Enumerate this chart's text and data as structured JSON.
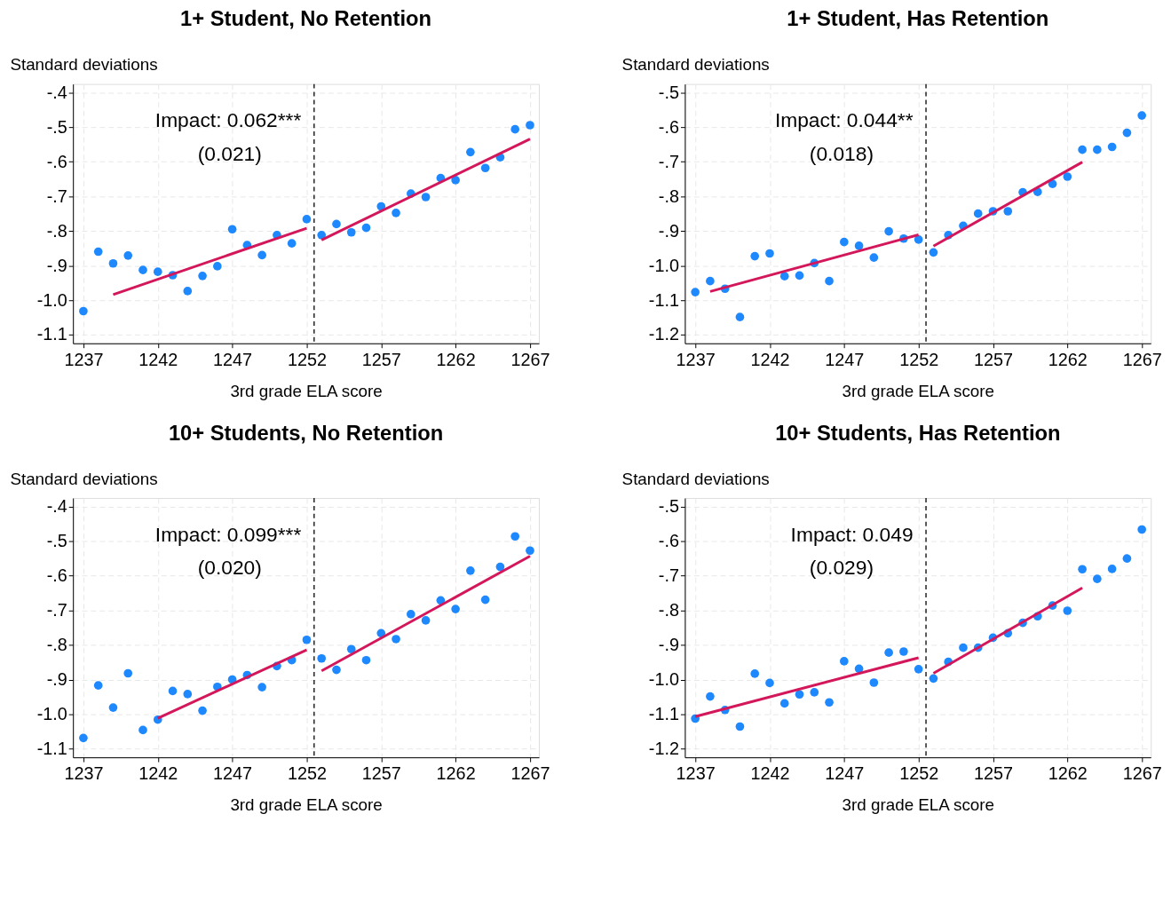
{
  "chart_data": [
    {
      "type": "scatter",
      "title": "1+ Student, No Retention",
      "ylabel": "Standard deviations",
      "xlabel": "3rd grade ELA score",
      "annotations": [
        "Impact: 0.062***",
        "(0.021)"
      ],
      "xlim": [
        1236.3,
        1267.6
      ],
      "xticks": [
        1237,
        1242,
        1247,
        1252,
        1257,
        1262,
        1267
      ],
      "ylim": [
        -1.125,
        -0.375
      ],
      "yticks": [
        {
          "value": -0.4,
          "label": "-.4"
        },
        {
          "value": -0.5,
          "label": "-.5"
        },
        {
          "value": -0.6,
          "label": "-.6"
        },
        {
          "value": -0.7,
          "label": "-.7"
        },
        {
          "value": -0.8,
          "label": "-.8"
        },
        {
          "value": -0.9,
          "label": "-.9"
        },
        {
          "value": -1.0,
          "label": "-1.0"
        },
        {
          "value": -1.1,
          "label": "-1.1"
        }
      ],
      "grid": true,
      "ref_lines": [
        {
          "axis": "x",
          "value": 1252.5,
          "line_style": "dashed",
          "color": "#000000"
        }
      ],
      "series": [
        {
          "marker": "circle",
          "color": "#1e88ff",
          "x": [
            1237,
            1238,
            1239,
            1240,
            1241,
            1242,
            1243,
            1244,
            1245,
            1246,
            1247,
            1248,
            1249,
            1250,
            1251,
            1252,
            1253,
            1254,
            1255,
            1256,
            1257,
            1258,
            1259,
            1260,
            1261,
            1262,
            1263,
            1264,
            1265,
            1266,
            1267
          ],
          "values": [
            -1.032,
            -0.86,
            -0.894,
            -0.871,
            -0.913,
            -0.918,
            -0.928,
            -0.974,
            -0.93,
            -0.902,
            -0.795,
            -0.841,
            -0.87,
            -0.812,
            -0.836,
            -0.766,
            -0.812,
            -0.78,
            -0.804,
            -0.791,
            -0.729,
            -0.748,
            -0.692,
            -0.702,
            -0.647,
            -0.653,
            -0.572,
            -0.618,
            -0.587,
            -0.506,
            -0.494
          ]
        },
        {
          "type": "line",
          "marker": "none",
          "color": "#d3175a",
          "x": [
            1239,
            1252
          ],
          "values": [
            -0.984,
            -0.792
          ]
        },
        {
          "type": "line",
          "marker": "none",
          "color": "#d3175a",
          "x": [
            1253,
            1267
          ],
          "values": [
            -0.826,
            -0.534
          ]
        }
      ]
    },
    {
      "type": "scatter",
      "title": "1+ Student, Has Retention",
      "ylabel": "Standard deviations",
      "xlabel": "3rd grade ELA score",
      "annotations": [
        "Impact: 0.044**",
        "(0.018)"
      ],
      "xlim": [
        1236.3,
        1267.6
      ],
      "xticks": [
        1237,
        1242,
        1247,
        1252,
        1257,
        1262,
        1267
      ],
      "ylim": [
        -1.225,
        -0.475
      ],
      "yticks": [
        {
          "value": -0.5,
          "label": "-.5"
        },
        {
          "value": -0.6,
          "label": "-.6"
        },
        {
          "value": -0.7,
          "label": "-.7"
        },
        {
          "value": -0.8,
          "label": "-.8"
        },
        {
          "value": -0.9,
          "label": "-.9"
        },
        {
          "value": -1.0,
          "label": "-1.0"
        },
        {
          "value": -1.1,
          "label": "-1.1"
        },
        {
          "value": -1.2,
          "label": "-1.2"
        }
      ],
      "grid": true,
      "ref_lines": [
        {
          "axis": "x",
          "value": 1252.5,
          "line_style": "dashed",
          "color": "#000000"
        }
      ],
      "series": [
        {
          "marker": "circle",
          "color": "#1e88ff",
          "x": [
            1237,
            1238,
            1239,
            1240,
            1241,
            1242,
            1243,
            1244,
            1245,
            1246,
            1247,
            1248,
            1249,
            1250,
            1251,
            1252,
            1253,
            1254,
            1255,
            1256,
            1257,
            1258,
            1259,
            1260,
            1261,
            1262,
            1263,
            1264,
            1265,
            1266,
            1267
          ],
          "values": [
            -1.077,
            -1.045,
            -1.067,
            -1.149,
            -0.973,
            -0.965,
            -1.031,
            -1.029,
            -0.993,
            -1.045,
            -0.932,
            -0.943,
            -0.977,
            -0.901,
            -0.922,
            -0.925,
            -0.962,
            -0.912,
            -0.885,
            -0.85,
            -0.843,
            -0.843,
            -0.788,
            -0.787,
            -0.764,
            -0.743,
            -0.665,
            -0.665,
            -0.657,
            -0.616,
            -0.566
          ]
        },
        {
          "type": "line",
          "marker": "none",
          "color": "#d3175a",
          "x": [
            1238,
            1252
          ],
          "values": [
            -1.075,
            -0.911
          ]
        },
        {
          "type": "line",
          "marker": "none",
          "color": "#d3175a",
          "x": [
            1253,
            1263
          ],
          "values": [
            -0.944,
            -0.701
          ]
        }
      ]
    },
    {
      "type": "scatter",
      "title": "10+ Students, No Retention",
      "ylabel": "Standard deviations",
      "xlabel": "3rd grade ELA score",
      "annotations": [
        "Impact: 0.099***",
        "(0.020)"
      ],
      "xlim": [
        1236.3,
        1267.6
      ],
      "xticks": [
        1237,
        1242,
        1247,
        1252,
        1257,
        1262,
        1267
      ],
      "ylim": [
        -1.125,
        -0.375
      ],
      "yticks": [
        {
          "value": -0.4,
          "label": "-.4"
        },
        {
          "value": -0.5,
          "label": "-.5"
        },
        {
          "value": -0.6,
          "label": "-.6"
        },
        {
          "value": -0.7,
          "label": "-.7"
        },
        {
          "value": -0.8,
          "label": "-.8"
        },
        {
          "value": -0.9,
          "label": "-.9"
        },
        {
          "value": -1.0,
          "label": "-1.0"
        },
        {
          "value": -1.1,
          "label": "-1.1"
        }
      ],
      "grid": true,
      "ref_lines": [
        {
          "axis": "x",
          "value": 1252.5,
          "line_style": "dashed",
          "color": "#000000"
        }
      ],
      "series": [
        {
          "marker": "circle",
          "color": "#1e88ff",
          "x": [
            1237,
            1238,
            1239,
            1240,
            1241,
            1242,
            1243,
            1244,
            1245,
            1246,
            1247,
            1248,
            1249,
            1250,
            1251,
            1252,
            1253,
            1254,
            1255,
            1256,
            1257,
            1258,
            1259,
            1260,
            1261,
            1262,
            1263,
            1264,
            1265,
            1266,
            1267
          ],
          "values": [
            -1.069,
            -0.917,
            -0.981,
            -0.882,
            -1.046,
            -1.016,
            -0.933,
            -0.942,
            -0.99,
            -0.921,
            -0.9,
            -0.887,
            -0.922,
            -0.861,
            -0.844,
            -0.785,
            -0.839,
            -0.872,
            -0.812,
            -0.844,
            -0.766,
            -0.783,
            -0.711,
            -0.729,
            -0.671,
            -0.696,
            -0.585,
            -0.669,
            -0.574,
            -0.486,
            -0.527
          ]
        },
        {
          "type": "line",
          "marker": "none",
          "color": "#d3175a",
          "x": [
            1242,
            1252
          ],
          "values": [
            -1.012,
            -0.814
          ]
        },
        {
          "type": "line",
          "marker": "none",
          "color": "#d3175a",
          "x": [
            1253,
            1267
          ],
          "values": [
            -0.875,
            -0.543
          ]
        }
      ]
    },
    {
      "type": "scatter",
      "title": "10+ Students, Has Retention",
      "ylabel": "Standard deviations",
      "xlabel": "3rd grade ELA score",
      "annotations": [
        "Impact: 0.049",
        "(0.029)"
      ],
      "xlim": [
        1236.3,
        1267.6
      ],
      "xticks": [
        1237,
        1242,
        1247,
        1252,
        1257,
        1262,
        1267
      ],
      "ylim": [
        -1.225,
        -0.475
      ],
      "yticks": [
        {
          "value": -0.5,
          "label": "-.5"
        },
        {
          "value": -0.6,
          "label": "-.6"
        },
        {
          "value": -0.7,
          "label": "-.7"
        },
        {
          "value": -0.8,
          "label": "-.8"
        },
        {
          "value": -0.9,
          "label": "-.9"
        },
        {
          "value": -1.0,
          "label": "-1.0"
        },
        {
          "value": -1.1,
          "label": "-1.1"
        },
        {
          "value": -1.2,
          "label": "-1.2"
        }
      ],
      "grid": true,
      "ref_lines": [
        {
          "axis": "x",
          "value": 1252.5,
          "line_style": "dashed",
          "color": "#000000"
        }
      ],
      "series": [
        {
          "marker": "circle",
          "color": "#1e88ff",
          "x": [
            1237,
            1238,
            1239,
            1240,
            1241,
            1242,
            1243,
            1244,
            1245,
            1246,
            1247,
            1248,
            1249,
            1250,
            1251,
            1252,
            1253,
            1254,
            1255,
            1256,
            1257,
            1258,
            1259,
            1260,
            1261,
            1262,
            1263,
            1264,
            1265,
            1266,
            1267
          ],
          "values": [
            -1.113,
            -1.049,
            -1.088,
            -1.136,
            -0.983,
            -1.01,
            -1.069,
            -1.043,
            -1.037,
            -1.066,
            -0.947,
            -0.969,
            -1.009,
            -0.922,
            -0.919,
            -0.97,
            -0.997,
            -0.949,
            -0.908,
            -0.908,
            -0.879,
            -0.866,
            -0.836,
            -0.817,
            -0.786,
            -0.801,
            -0.681,
            -0.709,
            -0.68,
            -0.65,
            -0.566
          ]
        },
        {
          "type": "line",
          "marker": "none",
          "color": "#d3175a",
          "x": [
            1237,
            1252
          ],
          "values": [
            -1.107,
            -0.937
          ]
        },
        {
          "type": "line",
          "marker": "none",
          "color": "#d3175a",
          "x": [
            1253,
            1263
          ],
          "values": [
            -0.982,
            -0.735
          ]
        }
      ]
    }
  ]
}
